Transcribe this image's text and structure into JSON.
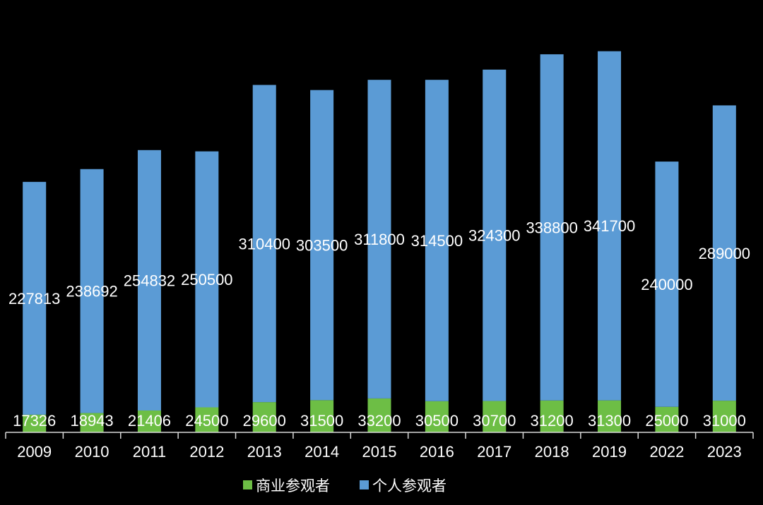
{
  "chart_data": {
    "type": "bar",
    "stacked": true,
    "title": "",
    "xlabel": "",
    "ylabel": "",
    "ylim": [
      0,
      390000
    ],
    "grid": false,
    "legend_position": "bottom",
    "categories": [
      "2009",
      "2010",
      "2011",
      "2012",
      "2013",
      "2014",
      "2015",
      "2016",
      "2017",
      "2018",
      "2019",
      "2022",
      "2023"
    ],
    "series": [
      {
        "name": "商业参观者",
        "color": "#6DBE45",
        "values": [
          17326,
          18943,
          21406,
          24500,
          29600,
          31500,
          33200,
          30500,
          30700,
          31200,
          31300,
          25000,
          31000
        ]
      },
      {
        "name": "个人参观者",
        "color": "#5B9BD5",
        "values": [
          227813,
          238692,
          254832,
          250500,
          310400,
          303500,
          311800,
          314500,
          324300,
          338800,
          341700,
          240000,
          289000
        ]
      }
    ]
  }
}
